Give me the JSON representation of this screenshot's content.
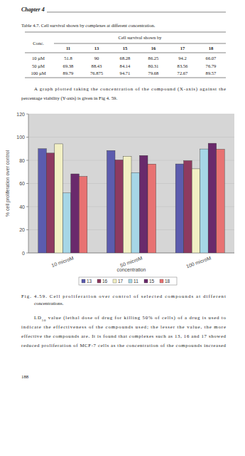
{
  "header": {
    "chapter": "Chapter 4"
  },
  "table": {
    "caption": "Table 4.7. Cell survival shown by complexes at different concentration.",
    "corner": "Conc.",
    "group_header": "Cell survival shown by",
    "columns": [
      "11",
      "13",
      "15",
      "16",
      "17",
      "18"
    ],
    "rows": [
      [
        "10 µM",
        "51.8",
        "90",
        "68.28",
        "86.25",
        "94.2",
        "66.07"
      ],
      [
        "50 µM",
        "69.38",
        "88.43",
        "84.14",
        "80.31",
        "83.56",
        "76.79"
      ],
      [
        "100 µM",
        "89.79",
        "76.875",
        "94.71",
        "79.68",
        "72.67",
        "89.57"
      ]
    ]
  },
  "paragraphs": [
    {
      "lines": [
        "A graph plotted taking the concentration of the compound (X-axis) against the",
        "percentage viability (Y-axis) is given in Fig 4. 59."
      ]
    },
    {
      "lines": [
        [
          {
            "text": "LD"
          },
          {
            "text": "50",
            "sub": true
          },
          {
            "text": " value (lethal dose of drug for killing 50% of cells) of a drug is used to"
          }
        ],
        "indicate the effectiveness of the compounds used; the lesser the value, the more",
        "effective the compounds are. It is found that complexes such as 13, 16 and 17 showed",
        "reduced proliferation of MCF-7 cells as the concentration of the compounds increased"
      ]
    }
  ],
  "chart_data": {
    "type": "bar",
    "categories": [
      "10 microM",
      "50 microM",
      "100 microM"
    ],
    "xlabel": "concentration",
    "ylabel": "% cell proliferation over control",
    "ylim": [
      0,
      120
    ],
    "yticks": [
      0,
      20,
      40,
      60,
      80,
      100,
      120
    ],
    "grid": true,
    "legend": "bottom",
    "series": [
      {
        "name": "13",
        "color": "#5c5cae",
        "values": [
          90,
          88.43,
          76.875
        ]
      },
      {
        "name": "16",
        "color": "#8e3a60",
        "values": [
          86.25,
          80.31,
          79.68
        ]
      },
      {
        "name": "17",
        "color": "#f2f0c4",
        "values": [
          94.2,
          83.56,
          72.67
        ]
      },
      {
        "name": "11",
        "color": "#a6d6e6",
        "values": [
          51.8,
          69.38,
          89.79
        ]
      },
      {
        "name": "15",
        "color": "#6a2a6c",
        "values": [
          68.28,
          84.14,
          94.71
        ]
      },
      {
        "name": "18",
        "color": "#e87272",
        "values": [
          66.07,
          76.79,
          89.57
        ]
      }
    ]
  },
  "figure": {
    "caption_lines": [
      "Fig. 4.59. Cell proliferation over control of selected compounds at different",
      "concentrations."
    ]
  },
  "footer": {
    "page": "188"
  }
}
